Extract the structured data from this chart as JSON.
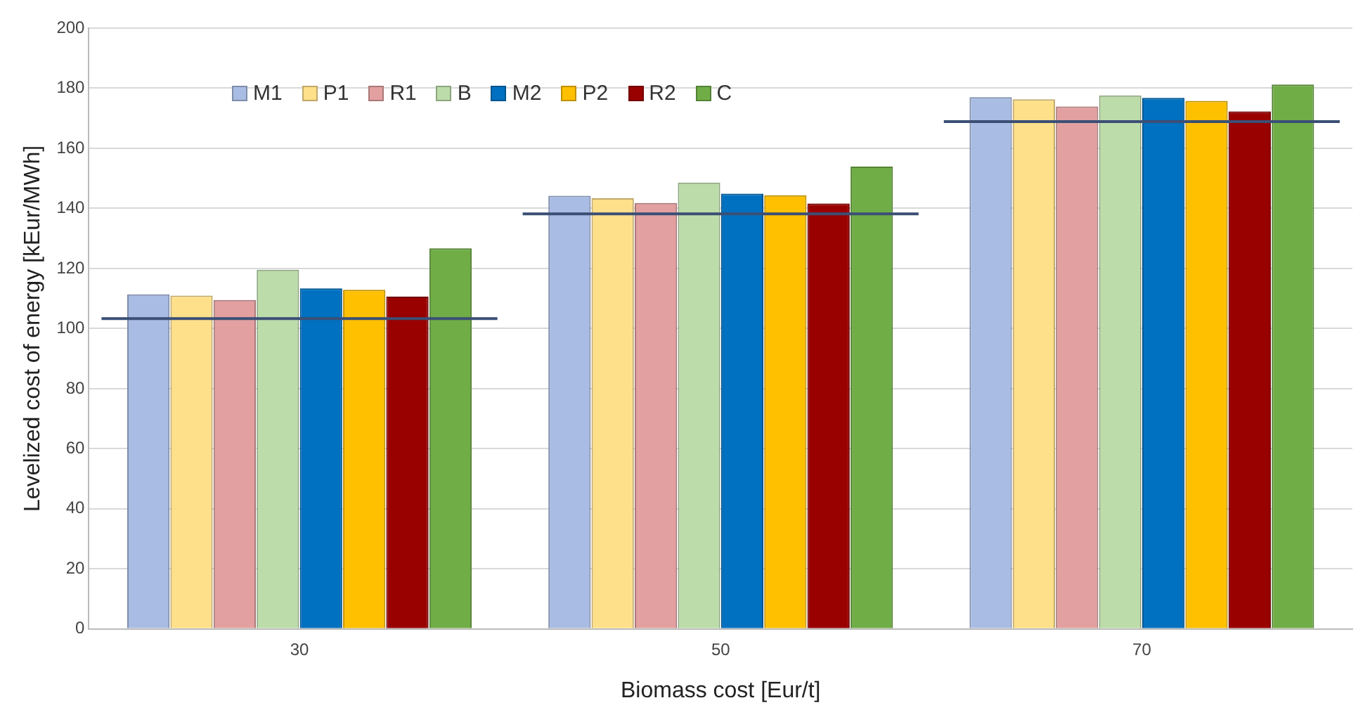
{
  "chart_data": {
    "type": "bar",
    "xlabel": "Biomass cost [Eur/t]",
    "ylabel": "Levelized cost of energy [kEur/MWh]",
    "categories": [
      "30",
      "50",
      "70"
    ],
    "series": [
      {
        "name": "M1",
        "color": "#a9bce3",
        "values": [
          111.4,
          144.2,
          177
        ]
      },
      {
        "name": "P1",
        "color": "#ffe08a",
        "values": [
          111,
          143.4,
          176.3
        ]
      },
      {
        "name": "R1",
        "color": "#e3a0a0",
        "values": [
          109.5,
          141.8,
          173.9
        ]
      },
      {
        "name": "B",
        "color": "#bcdcaa",
        "values": [
          119.6,
          148.6,
          177.6
        ]
      },
      {
        "name": "M2",
        "color": "#0070c0",
        "values": [
          113.4,
          144.9,
          176.8
        ]
      },
      {
        "name": "P2",
        "color": "#ffc000",
        "values": [
          112.9,
          144.4,
          175.8
        ]
      },
      {
        "name": "R2",
        "color": "#990000",
        "values": [
          110.6,
          141.6,
          172.3
        ]
      },
      {
        "name": "C",
        "color": "#70ad47",
        "values": [
          126.7,
          153.9,
          181.2
        ]
      }
    ],
    "ref_lines": [
      {
        "axis": "y",
        "value": 103.3,
        "color": "#3b4f75"
      },
      {
        "axis": "y",
        "value": 138.2,
        "color": "#3b4f75"
      },
      {
        "axis": "y",
        "value": 168.9,
        "color": "#3b4f75"
      }
    ],
    "ylim": [
      0,
      200
    ],
    "yticks": [
      0,
      20,
      40,
      60,
      80,
      100,
      120,
      140,
      160,
      180,
      200
    ],
    "grid": "y",
    "legend": "top left"
  }
}
